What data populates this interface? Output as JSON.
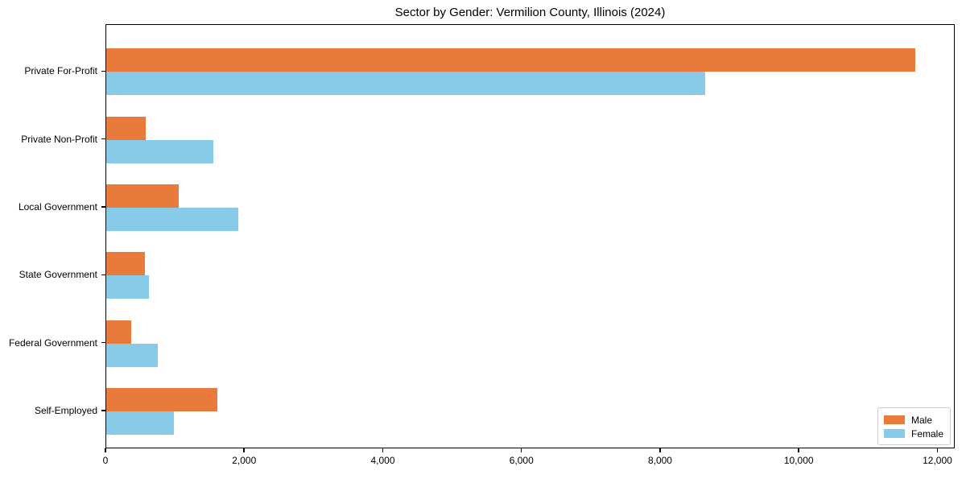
{
  "title": "Sector by Gender: Vermilion County, Illinois (2024)",
  "colors": {
    "male": "#e87b3c",
    "female": "#87cbe8",
    "axis": "#000000",
    "text": "#000000",
    "legend_border": "#cccccc"
  },
  "legend": {
    "position": "lower right",
    "items": [
      {
        "label": "Male",
        "color": "#e87b3c"
      },
      {
        "label": "Female",
        "color": "#87cbe8"
      }
    ]
  },
  "chart_data": {
    "type": "bar",
    "orientation": "horizontal",
    "title": "Sector by Gender: Vermilion County, Illinois (2024)",
    "categories": [
      "Private For-Profit",
      "Private Non-Profit",
      "Local Government",
      "State Government",
      "Federal Government",
      "Self-Employed"
    ],
    "series": [
      {
        "name": "Male",
        "color": "#e87b3c",
        "values": [
          11670,
          565,
          1050,
          560,
          360,
          1600
        ]
      },
      {
        "name": "Female",
        "color": "#87cbe8",
        "values": [
          8640,
          1540,
          1900,
          610,
          740,
          970
        ]
      }
    ],
    "xlabel": "",
    "ylabel": "",
    "xlim": [
      0,
      12250
    ],
    "x_ticks": [
      0,
      2000,
      4000,
      6000,
      8000,
      10000,
      12000
    ],
    "x_tick_labels": [
      "0",
      "2,000",
      "4,000",
      "6,000",
      "8,000",
      "10,000",
      "12,000"
    ],
    "grid": false,
    "legend_position": "lower right"
  }
}
